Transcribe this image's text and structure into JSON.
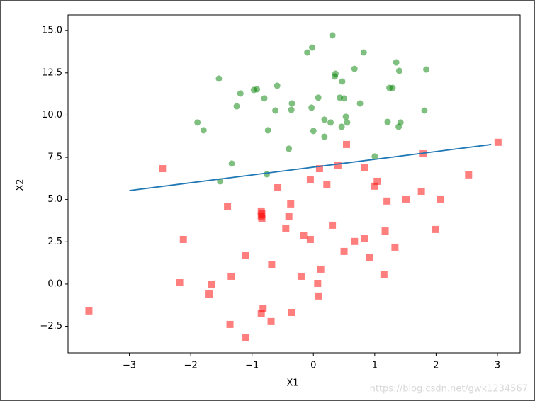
{
  "chart_data": {
    "type": "scatter",
    "xlabel": "X1",
    "ylabel": "X2",
    "xlim": [
      -4.0,
      3.37
    ],
    "ylim": [
      -4.07,
      15.93
    ],
    "xticks": [
      {
        "value": -3,
        "label": "−3"
      },
      {
        "value": -2,
        "label": "−2"
      },
      {
        "value": -1,
        "label": "−1"
      },
      0,
      1,
      2,
      3
    ],
    "yticks": [
      {
        "value": -2.5,
        "label": "−2.5"
      },
      {
        "value": 0,
        "label": "0.0"
      },
      {
        "value": 2.5,
        "label": "2.5"
      },
      {
        "value": 5,
        "label": "5.0"
      },
      {
        "value": 7.5,
        "label": "7.5"
      },
      {
        "value": 10,
        "label": "10.0"
      },
      {
        "value": 12.5,
        "label": "12.5"
      },
      {
        "value": 15,
        "label": "15.0"
      }
    ],
    "series": [
      {
        "color": "#008000",
        "marker": "circle",
        "x": [
          0.31,
          -0.1,
          -0.02,
          0.82,
          1.35,
          1.4,
          1.84,
          0.67,
          0.36,
          0.35,
          0.47,
          -1.54,
          -0.59,
          -0.97,
          -0.92,
          -1.19,
          -0.8,
          -0.35,
          -0.36,
          -0.62,
          -1.25,
          0.08,
          0.43,
          0.5,
          0.76,
          -0.03,
          1.24,
          1.29,
          1.81,
          -1.89,
          -1.79,
          -0.74,
          0.18,
          0.28,
          0.53,
          0.55,
          0.46,
          0.0,
          0.18,
          1.21,
          1.42,
          1.39,
          -0.4,
          1.0,
          -1.33,
          -0.76,
          -1.52
        ],
        "values": [
          14.72,
          13.71,
          14.0,
          13.71,
          13.12,
          12.62,
          12.7,
          12.74,
          12.45,
          12.29,
          11.99,
          12.16,
          11.74,
          11.49,
          11.53,
          11.28,
          10.99,
          10.69,
          10.31,
          10.27,
          10.52,
          11.03,
          11.03,
          10.99,
          10.69,
          10.44,
          11.61,
          11.61,
          10.27,
          9.56,
          9.1,
          9.1,
          9.73,
          9.56,
          9.9,
          9.56,
          9.31,
          9.06,
          8.72,
          9.6,
          9.56,
          9.31,
          8.01,
          7.55,
          7.13,
          6.5,
          6.08
        ]
      },
      {
        "color": "#ff0000",
        "marker": "square",
        "x": [
          -2.46,
          0.54,
          3.01,
          1.79,
          0.4,
          0.1,
          0.84,
          2.53,
          1.04,
          1.0,
          0.22,
          -0.05,
          -0.58,
          1.76,
          1.51,
          2.07,
          1.2,
          -1.4,
          -0.37,
          -0.85,
          -0.84,
          -0.85,
          -0.84,
          -0.4,
          -2.12,
          -0.45,
          0.31,
          1.99,
          1.17,
          -0.16,
          -0.05,
          0.67,
          0.83,
          1.33,
          0.5,
          -1.11,
          0.92,
          -0.68,
          0.12,
          -1.34,
          -0.2,
          1.15,
          -2.18,
          -1.66,
          0.07,
          -1.7,
          0.08,
          -3.66,
          -0.82,
          -0.85,
          -0.36,
          -0.69,
          -1.36,
          -1.1
        ],
        "values": [
          6.83,
          8.26,
          8.39,
          7.71,
          7.04,
          6.83,
          6.88,
          6.46,
          6.08,
          5.79,
          5.91,
          6.16,
          5.7,
          5.49,
          5.03,
          5.03,
          4.91,
          4.61,
          4.74,
          4.32,
          4.15,
          4.03,
          3.86,
          3.98,
          2.64,
          3.31,
          3.48,
          3.23,
          3.14,
          2.89,
          2.64,
          2.52,
          2.68,
          2.18,
          1.93,
          1.68,
          1.55,
          1.17,
          0.88,
          0.46,
          0.46,
          0.55,
          0.08,
          -0.04,
          0.04,
          -0.59,
          -0.71,
          -1.59,
          -1.47,
          -1.76,
          -1.68,
          -2.22,
          -2.39,
          -3.19
        ]
      },
      {
        "color": "#1f77b4",
        "marker": "line",
        "x": [
          -3.0,
          2.9
        ],
        "values": [
          5.53,
          8.26
        ]
      }
    ],
    "watermark": "https://blog.csdn.net/gwk1234567"
  }
}
